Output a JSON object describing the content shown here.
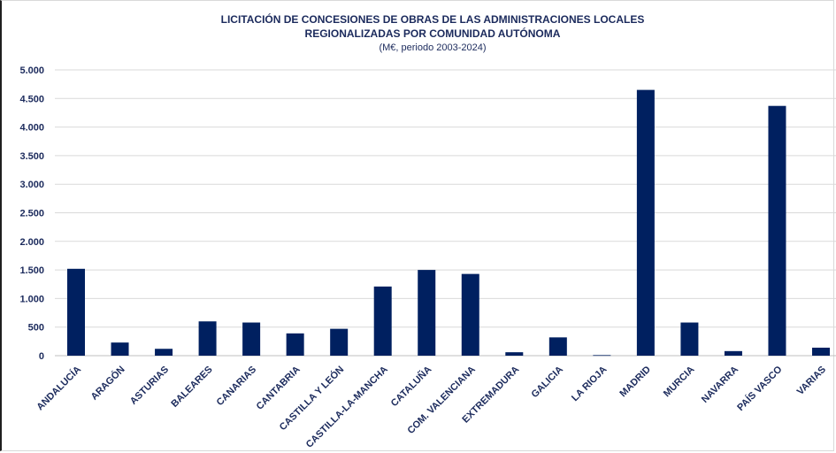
{
  "chart_data": {
    "type": "bar",
    "title_line1": "LICITACIÓN DE CONCESIONES DE OBRAS DE LAS ADMINISTRACIONES LOCALES",
    "title_line2": "REGIONALIZADAS POR COMUNIDAD AUTÓNOMA",
    "subtitle": "(M€, periodo 2003-2024)",
    "xlabel": "",
    "ylabel": "",
    "ylim": [
      0,
      5000
    ],
    "yticks": [
      0,
      500,
      1000,
      1500,
      2000,
      2500,
      3000,
      3500,
      4000,
      4500,
      5000
    ],
    "ytick_labels": [
      "0",
      "500",
      "1.000",
      "1.500",
      "2.000",
      "2.500",
      "3.000",
      "3.500",
      "4.000",
      "4.500",
      "5.000"
    ],
    "grid": true,
    "bar_color": "#002060",
    "grid_color": "#d9d9d9",
    "categories": [
      "ANDALUCÍA",
      "ARAGÓN",
      "ASTURIAS",
      "BALEARES",
      "CANARIAS",
      "CANTABRIA",
      "CASTILLA Y LEÓN",
      "CASTILLA-LA-MANCHA",
      "CATALUÑA",
      "COM. VALENCIANA",
      "EXTREMADURA",
      "GALICIA",
      "LA RIOJA",
      "MADRID",
      "MURCIA",
      "NAVARRA",
      "PAÍS VASCO",
      "VARIAS"
    ],
    "values": [
      1520,
      230,
      120,
      600,
      580,
      390,
      470,
      1210,
      1500,
      1430,
      60,
      320,
      10,
      4650,
      580,
      80,
      4370,
      140
    ]
  }
}
